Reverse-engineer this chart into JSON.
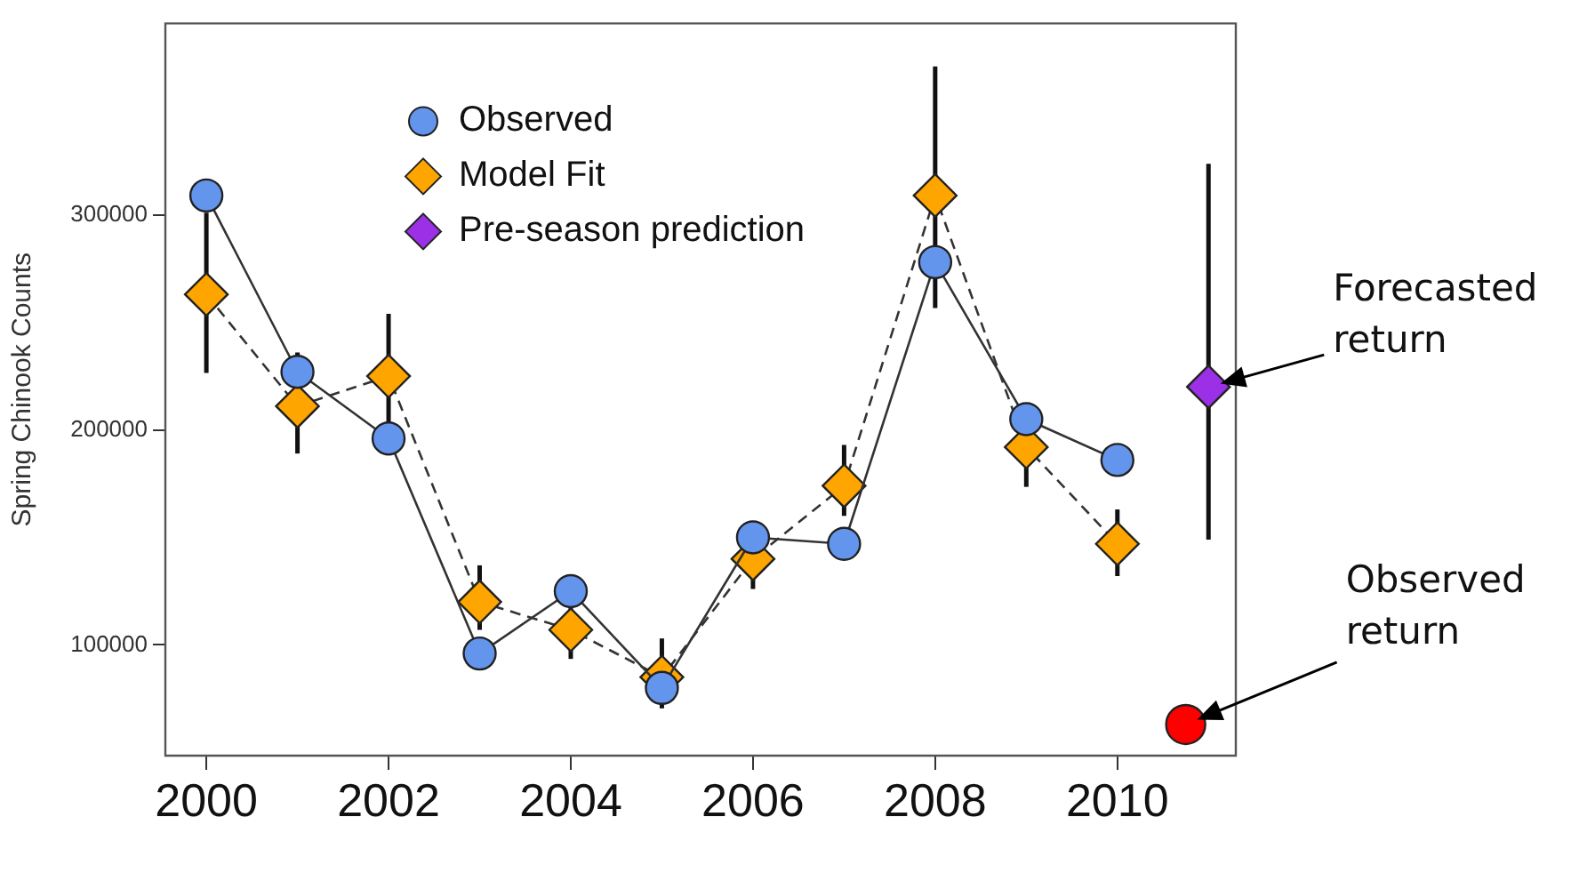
{
  "chart_data": {
    "type": "line",
    "ylabel": "Spring Chinook Counts",
    "xlim": [
      1999.55,
      2011.3
    ],
    "xticks": [
      2000,
      2002,
      2004,
      2006,
      2008,
      2010
    ],
    "ylim": [
      48500,
      389000
    ],
    "yticks": [
      100000,
      200000,
      300000
    ],
    "grid": false,
    "legend": "top left",
    "x": [
      2000,
      2001,
      2002,
      2003,
      2004,
      2005,
      2006,
      2007,
      2008,
      2009,
      2010
    ],
    "series": [
      {
        "name": "Observed",
        "color": "#6495ed",
        "marker": "circle",
        "line_style": "solid",
        "values": [
          309000,
          227000,
          196000,
          96000,
          125000,
          80000,
          150000,
          147000,
          278000,
          205000,
          186000
        ]
      },
      {
        "name": "Model Fit",
        "color": "#ffa500",
        "marker": "diamond",
        "line_style": "dashed",
        "values": [
          263000,
          211000,
          225000,
          120000,
          107000,
          85000,
          140000,
          174000,
          309000,
          192000,
          147000
        ],
        "errors": [
          [
            226500,
            301000
          ],
          [
            189000,
            236000
          ],
          [
            200000,
            254000
          ],
          [
            107000,
            137000
          ],
          [
            93500,
            118000
          ],
          [
            70500,
            103000
          ],
          [
            126000,
            157000
          ],
          [
            160000,
            193000
          ],
          [
            256700,
            369000
          ],
          [
            173500,
            212000
          ],
          [
            132000,
            163000
          ]
        ]
      },
      {
        "name": "Pre-season prediction",
        "type": "scatter",
        "color": "#9b30e6",
        "marker": "diamond",
        "x": [
          2011
        ],
        "values": [
          220000
        ],
        "errors": [
          [
            149000,
            323700
          ]
        ]
      },
      {
        "type": "scatter",
        "color": "#ff0000",
        "marker": "circle",
        "x": [
          2010.75
        ],
        "values": [
          63000
        ]
      }
    ],
    "annotations": [
      "Forecasted return",
      "Observed return"
    ]
  }
}
